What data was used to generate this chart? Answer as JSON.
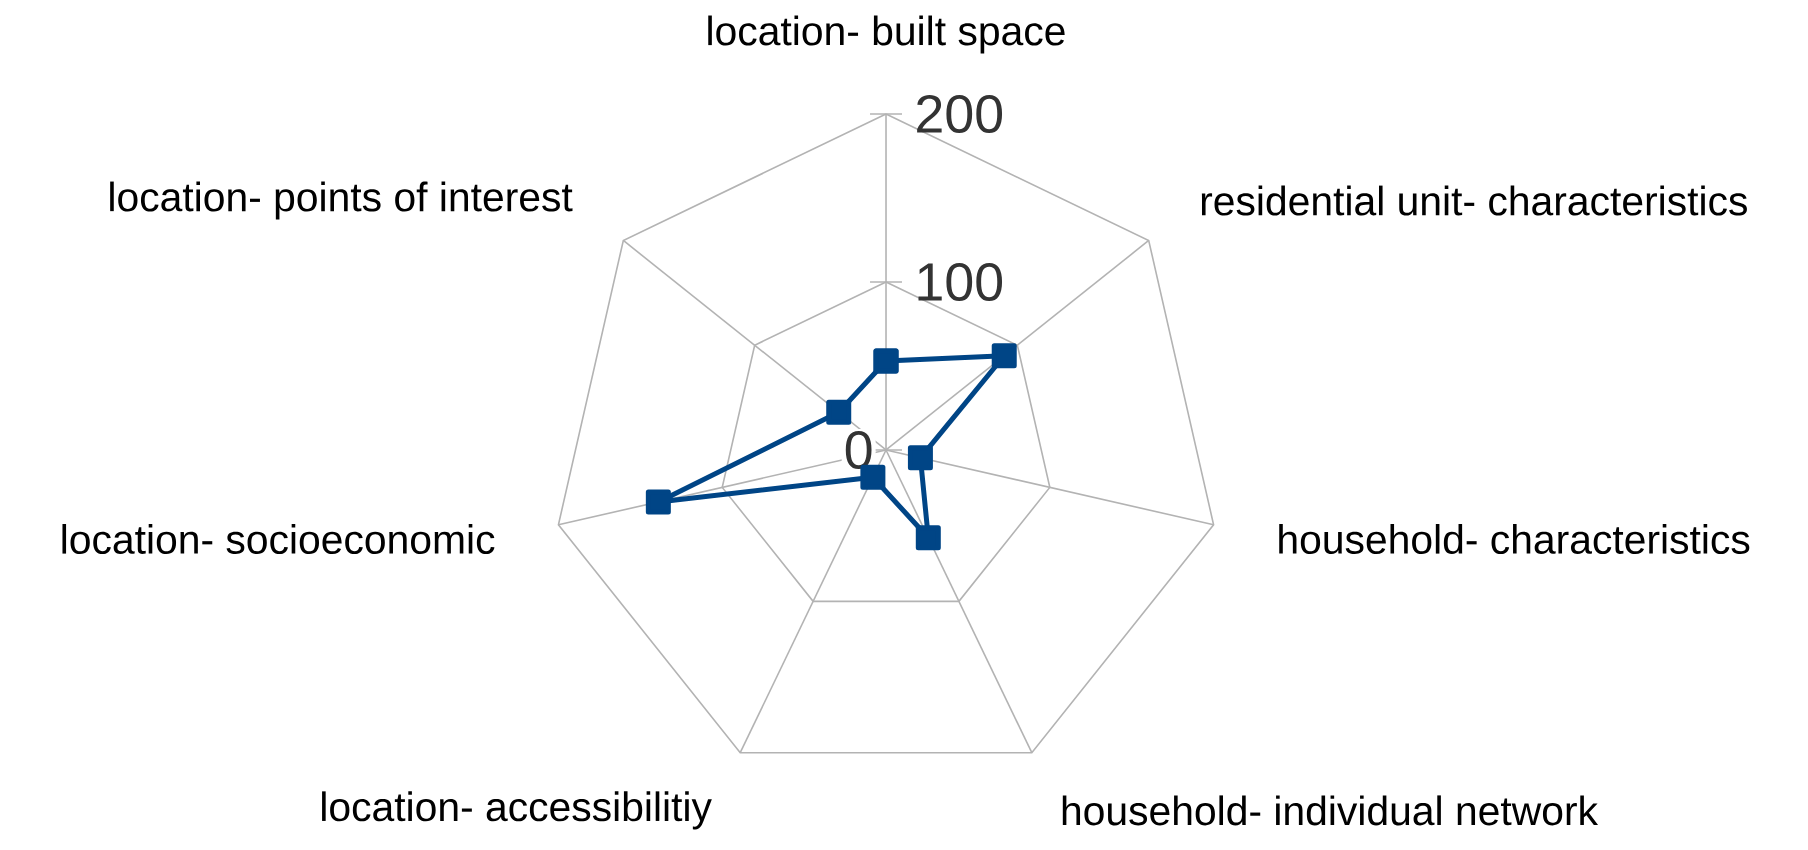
{
  "chart_data": {
    "type": "radar",
    "categories": [
      "location- built space",
      "residential unit- characteristics",
      "household- characteristics",
      "household- individual network",
      "location- accessibilitiy",
      "location- socioeconomic",
      "location- points of interest"
    ],
    "series": [
      {
        "color": "#004586",
        "values": [
          53,
          90,
          21,
          58,
          18,
          139,
          36
        ]
      }
    ],
    "ylim": [
      0,
      200
    ],
    "yticks": [
      0,
      100,
      200
    ],
    "grid": true,
    "marker": "square",
    "line_style": "solid"
  }
}
